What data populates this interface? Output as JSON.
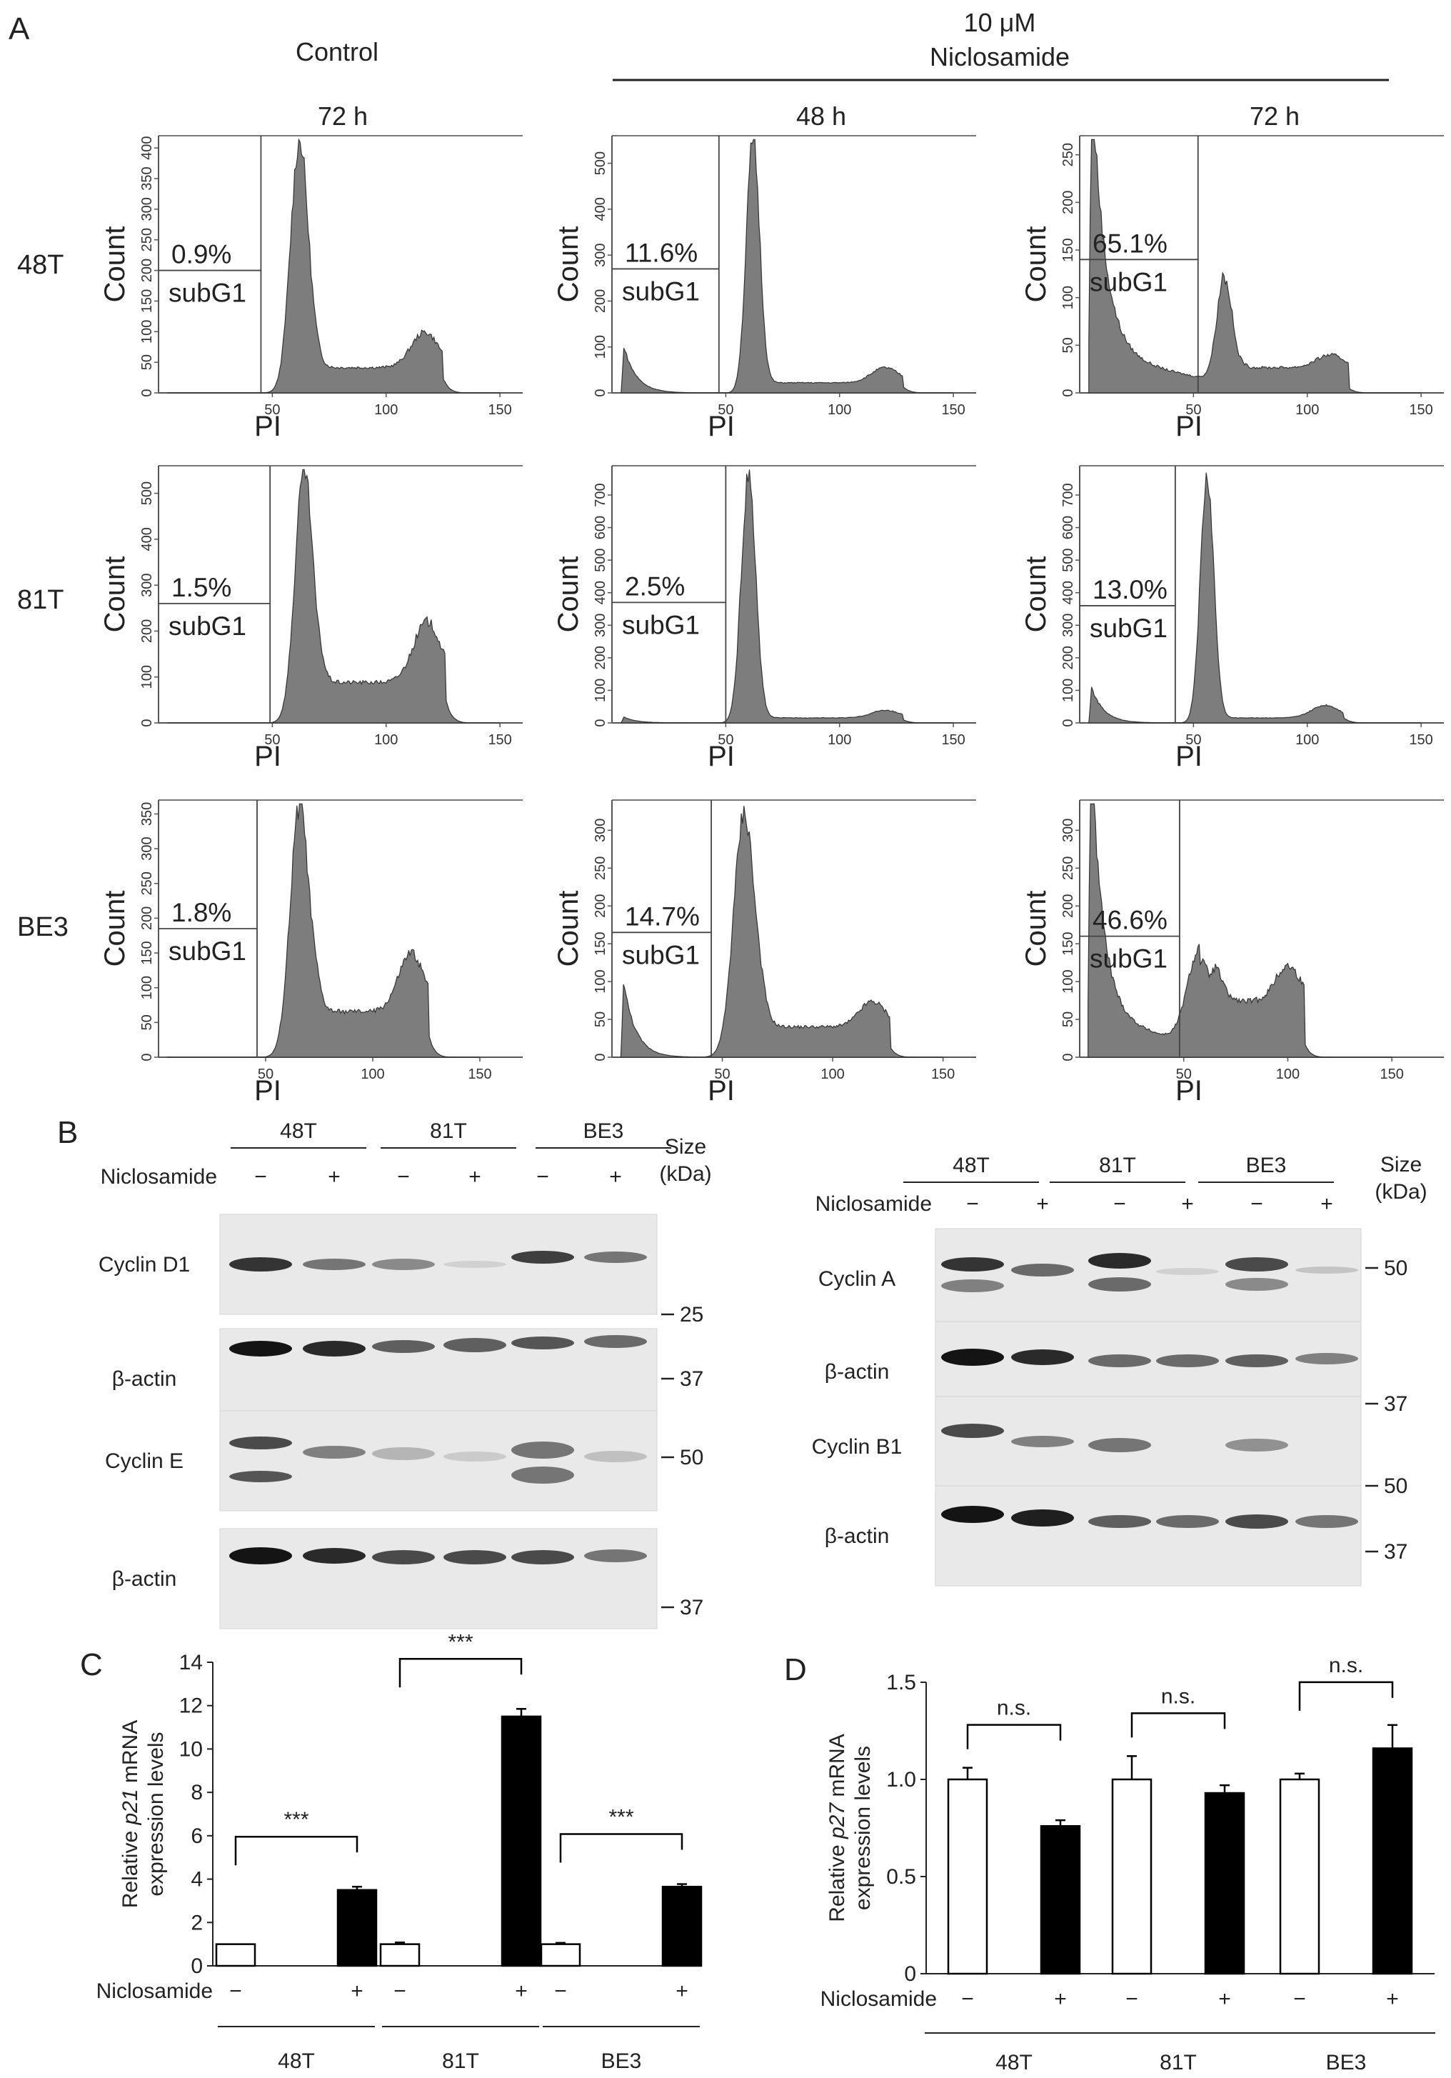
{
  "panel_labels": {
    "a": "A",
    "b": "B",
    "c": "C",
    "d": "D"
  },
  "panel_a": {
    "control_header": "Control",
    "treatment_header_line1": "10 μM",
    "treatment_header_line2": "Niclosamide",
    "column_times": [
      "72 h",
      "48 h",
      "72 h"
    ],
    "row_labels": [
      "48T",
      "81T",
      "BE3"
    ],
    "y_axis_label": "Count",
    "x_axis_label": "PI",
    "gate_label": "subG1",
    "percentages": [
      [
        "0.9%",
        "11.6%",
        "65.1%"
      ],
      [
        "1.5%",
        "2.5%",
        "13.0%"
      ],
      [
        "1.8%",
        "14.7%",
        "46.6%"
      ]
    ]
  },
  "panel_b": {
    "lane_groups": [
      "48T",
      "81T",
      "BE3"
    ],
    "treatment_label": "Niclosamide",
    "signs": [
      "−",
      "+",
      "−",
      "+",
      "−",
      "+"
    ],
    "size_label_line1": "Size",
    "size_label_line2": "(kDa)",
    "left_blots": [
      {
        "label": "Cyclin D1",
        "marker": "25"
      },
      {
        "label": "β-actin",
        "marker": "37"
      },
      {
        "label": "Cyclin E",
        "marker": "50"
      },
      {
        "label": "β-actin",
        "marker": "37"
      }
    ],
    "right_blots": [
      {
        "label": "Cyclin A",
        "marker": "50"
      },
      {
        "label": "β-actin",
        "marker": "37"
      },
      {
        "label": "Cyclin B1",
        "marker": "50"
      },
      {
        "label": "β-actin",
        "marker": "37"
      }
    ]
  },
  "chart_data": [
    {
      "panel": "A",
      "type": "area",
      "description_units": "histogram of cell count vs PI intensity; 3 cell lines x 3 conditions",
      "xlabel": "PI",
      "ylabel": "Count",
      "grid": false,
      "panels": [
        {
          "row": "48T",
          "condition": "Control 72 h",
          "subg1_percent": 0.9,
          "xlim": [
            0,
            160
          ],
          "ylim": [
            0,
            420
          ],
          "yticks": [
            0,
            50,
            100,
            150,
            200,
            250,
            300,
            350,
            400
          ],
          "xticks": [
            50,
            100,
            150
          ],
          "gate_x": 45,
          "gate_level": 200
        },
        {
          "row": "48T",
          "condition": "Niclosamide 48 h",
          "subg1_percent": 11.6,
          "xlim": [
            0,
            160
          ],
          "ylim": [
            0,
            560
          ],
          "yticks": [
            0,
            100,
            200,
            300,
            400,
            500
          ],
          "xticks": [
            50,
            100,
            150
          ],
          "gate_x": 47,
          "gate_level": 270
        },
        {
          "row": "48T",
          "condition": "Niclosamide 72 h",
          "subg1_percent": 65.1,
          "xlim": [
            0,
            160
          ],
          "ylim": [
            0,
            270
          ],
          "yticks": [
            0,
            50,
            100,
            150,
            200,
            250
          ],
          "xticks": [
            50,
            100,
            150
          ],
          "gate_x": 52,
          "gate_level": 140
        },
        {
          "row": "81T",
          "condition": "Control 72 h",
          "subg1_percent": 1.5,
          "xlim": [
            0,
            160
          ],
          "ylim": [
            0,
            560
          ],
          "yticks": [
            0,
            100,
            200,
            300,
            400,
            500
          ],
          "xticks": [
            50,
            100,
            150
          ],
          "gate_x": 49,
          "gate_level": 260
        },
        {
          "row": "81T",
          "condition": "Niclosamide 48 h",
          "subg1_percent": 2.5,
          "xlim": [
            0,
            160
          ],
          "ylim": [
            0,
            790
          ],
          "yticks": [
            0,
            100,
            200,
            300,
            400,
            500,
            600,
            700
          ],
          "xticks": [
            50,
            100,
            150
          ],
          "gate_x": 50,
          "gate_level": 370
        },
        {
          "row": "81T",
          "condition": "Niclosamide 72 h",
          "subg1_percent": 13.0,
          "xlim": [
            0,
            160
          ],
          "ylim": [
            0,
            790
          ],
          "yticks": [
            0,
            100,
            200,
            300,
            400,
            500,
            600,
            700
          ],
          "xticks": [
            50,
            100,
            150
          ],
          "gate_x": 42,
          "gate_level": 360
        },
        {
          "row": "BE3",
          "condition": "Control 72 h",
          "subg1_percent": 1.8,
          "xlim": [
            0,
            170
          ],
          "ylim": [
            0,
            370
          ],
          "yticks": [
            0,
            50,
            100,
            150,
            200,
            250,
            300,
            350
          ],
          "xticks": [
            50,
            100,
            150
          ],
          "gate_x": 46,
          "gate_level": 185
        },
        {
          "row": "BE3",
          "condition": "Niclosamide 48 h",
          "subg1_percent": 14.7,
          "xlim": [
            0,
            165
          ],
          "ylim": [
            0,
            340
          ],
          "yticks": [
            0,
            50,
            100,
            150,
            200,
            250,
            300
          ],
          "xticks": [
            50,
            100,
            150
          ],
          "gate_x": 45,
          "gate_level": 165
        },
        {
          "row": "BE3",
          "condition": "Niclosamide 72 h",
          "subg1_percent": 46.6,
          "xlim": [
            0,
            175
          ],
          "ylim": [
            0,
            340
          ],
          "yticks": [
            0,
            50,
            100,
            150,
            200,
            250,
            300
          ],
          "xticks": [
            50,
            100,
            150
          ],
          "gate_x": 48,
          "gate_level": 160
        }
      ]
    },
    {
      "panel": "C",
      "type": "bar",
      "ylabel_prefix": "Relative ",
      "ylabel_gene": "p21",
      "ylabel_suffix": " mRNA",
      "ylabel_line2": "expression levels",
      "ylim": [
        0,
        14
      ],
      "yticks": [
        0,
        2,
        4,
        6,
        8,
        10,
        12,
        14
      ],
      "treatment_label": "Niclosamide",
      "signs": [
        "−",
        "+",
        "−",
        "+",
        "−",
        "+"
      ],
      "categories": [
        "48T",
        "81T",
        "BE3"
      ],
      "series": [
        {
          "treatment": "−",
          "values": [
            1.0,
            1.0,
            1.0
          ],
          "errors": [
            0.0,
            0.08,
            0.06
          ],
          "color": "#ffffff"
        },
        {
          "treatment": "+",
          "values": [
            3.5,
            11.5,
            3.65
          ],
          "errors": [
            0.15,
            0.35,
            0.12
          ],
          "color": "#000000"
        }
      ],
      "significance": [
        "***",
        "***",
        "***"
      ]
    },
    {
      "panel": "D",
      "type": "bar",
      "ylabel_prefix": "Relative ",
      "ylabel_gene": "p27",
      "ylabel_suffix": " mRNA",
      "ylabel_line2": "expression levels",
      "ylim": [
        0,
        1.5
      ],
      "yticks": [
        "0",
        "0.5",
        "1.0",
        "1.5"
      ],
      "treatment_label": "Niclosamide",
      "signs": [
        "−",
        "+",
        "−",
        "+",
        "−",
        "+"
      ],
      "categories": [
        "48T",
        "81T",
        "BE3"
      ],
      "series": [
        {
          "treatment": "−",
          "values": [
            1.0,
            1.0,
            1.0
          ],
          "errors": [
            0.06,
            0.12,
            0.03
          ],
          "color": "#ffffff"
        },
        {
          "treatment": "+",
          "values": [
            0.76,
            0.93,
            1.16
          ],
          "errors": [
            0.03,
            0.04,
            0.12
          ],
          "color": "#000000"
        }
      ],
      "significance": [
        "n.s.",
        "n.s.",
        "n.s."
      ]
    }
  ]
}
